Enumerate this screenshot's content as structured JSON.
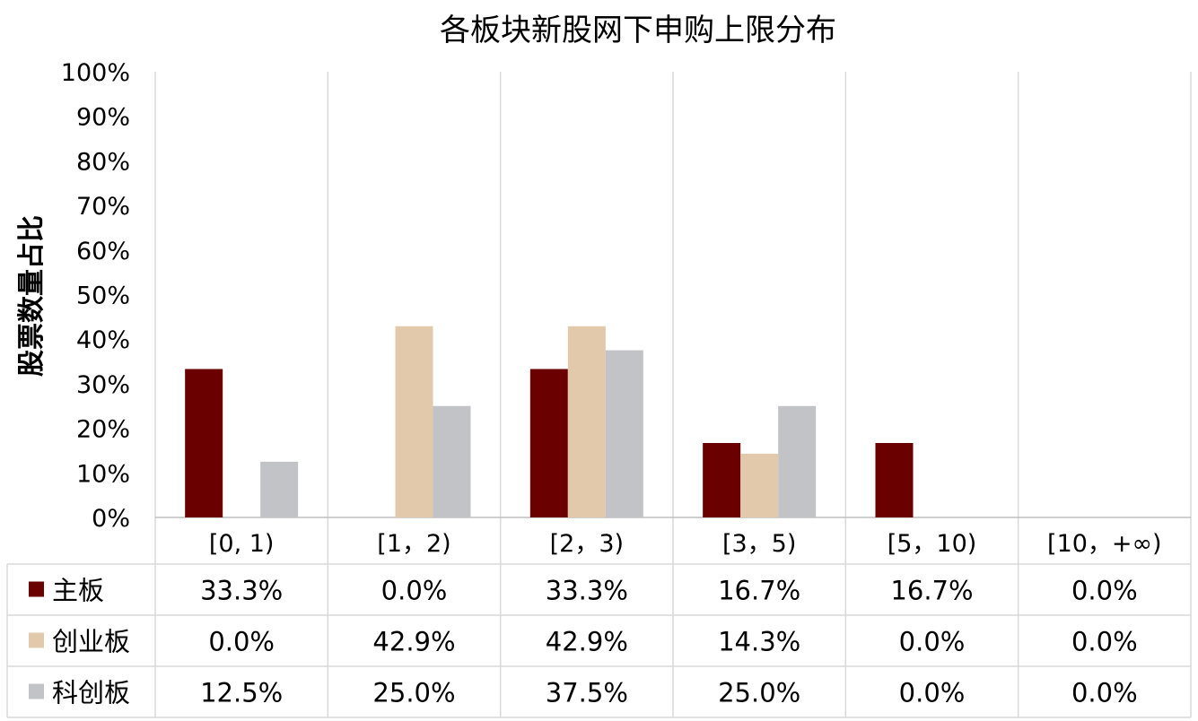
{
  "chart_data": {
    "type": "bar",
    "title": "各板块新股网下申购上限分布",
    "xlabel": "",
    "ylabel": "股票数量占比",
    "ylim": [
      0,
      100
    ],
    "yticks": [
      "0%",
      "10%",
      "20%",
      "30%",
      "40%",
      "50%",
      "60%",
      "70%",
      "80%",
      "90%",
      "100%"
    ],
    "categories": [
      "[0, 1)",
      "[1，2)",
      "[2，3)",
      "[3，5)",
      "[5，10)",
      "[10，+∞)"
    ],
    "series": [
      {
        "name": "主板",
        "color": "#6b0000",
        "values": [
          33.3,
          0.0,
          33.3,
          16.7,
          16.7,
          0.0
        ],
        "labels": [
          "33.3%",
          "0.0%",
          "33.3%",
          "16.7%",
          "16.7%",
          "0.0%"
        ]
      },
      {
        "name": "创业板",
        "color": "#e2c9ab",
        "values": [
          0.0,
          42.9,
          42.9,
          14.3,
          0.0,
          0.0
        ],
        "labels": [
          "0.0%",
          "42.9%",
          "42.9%",
          "14.3%",
          "0.0%",
          "0.0%"
        ]
      },
      {
        "name": "科创板",
        "color": "#c1c3c6",
        "values": [
          12.5,
          25.0,
          37.5,
          25.0,
          0.0,
          0.0
        ],
        "labels": [
          "12.5%",
          "25.0%",
          "37.5%",
          "25.0%",
          "0.0%",
          "0.0%"
        ]
      }
    ],
    "grid": "vertical",
    "legend": "data-table"
  }
}
